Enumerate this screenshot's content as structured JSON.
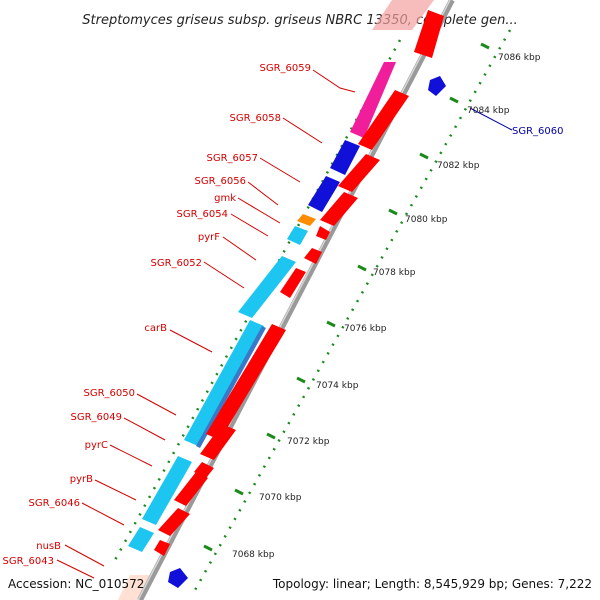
{
  "title": "Streptomyces griseus subsp. griseus NBRC 13350, complete gen...",
  "accession": "Accession: NC_010572",
  "summary": "Topology: linear; Length: 8,545,929 bp; Genes: 7,222",
  "colors": {
    "red": "#ff0000",
    "blue": "#1010d8",
    "cyan": "#1cc6f0",
    "pink": "#f01e9a",
    "orange": "#ff8c00",
    "peach": "#ffd8c8",
    "label_red": "#d40000",
    "label_blue": "#0000aa",
    "dot_green": "#1a8a1a",
    "axis_gray": "#a0a0a0"
  },
  "ticks": [
    {
      "label": "7068 kbp"
    },
    {
      "label": "7070 kbp"
    },
    {
      "label": "7072 kbp"
    },
    {
      "label": "7074 kbp"
    },
    {
      "label": "7076 kbp"
    },
    {
      "label": "7078 kbp"
    },
    {
      "label": "7080 kbp"
    },
    {
      "label": "7082 kbp"
    },
    {
      "label": "7084 kbp"
    },
    {
      "label": "7086 kbp"
    }
  ],
  "gene_labels": [
    {
      "name": "SGR_6059",
      "color": "red"
    },
    {
      "name": "SGR_6058",
      "color": "red"
    },
    {
      "name": "SGR_6057",
      "color": "red"
    },
    {
      "name": "SGR_6056",
      "color": "red"
    },
    {
      "name": "gmk",
      "color": "red"
    },
    {
      "name": "SGR_6054",
      "color": "red"
    },
    {
      "name": "pyrF",
      "color": "red"
    },
    {
      "name": "SGR_6052",
      "color": "red"
    },
    {
      "name": "carB",
      "color": "red"
    },
    {
      "name": "SGR_6050",
      "color": "red"
    },
    {
      "name": "SGR_6049",
      "color": "red"
    },
    {
      "name": "pyrC",
      "color": "red"
    },
    {
      "name": "pyrB",
      "color": "red"
    },
    {
      "name": "SGR_6046",
      "color": "red"
    },
    {
      "name": "nusB",
      "color": "red"
    },
    {
      "name": "SGR_6043",
      "color": "red"
    },
    {
      "name": "SGR_6060",
      "color": "blue"
    }
  ]
}
